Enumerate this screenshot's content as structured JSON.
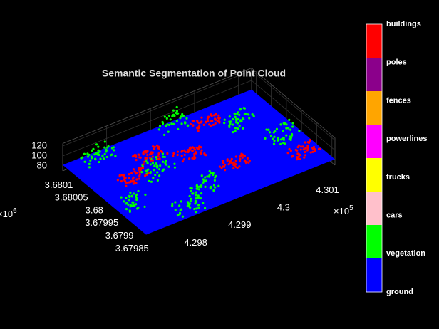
{
  "chart_data": {
    "type": "scatter3",
    "title": "Semantic Segmentation of Point Cloud",
    "xlim": [
      4.297,
      4.3013
    ],
    "xticks": [
      4.298,
      4.299,
      4.3,
      4.301
    ],
    "x_exponent": {
      "base": "×10",
      "power": "5"
    },
    "ylim": [
      3.67984,
      3.680115
    ],
    "yticks": [
      3.67985,
      3.6799,
      3.67995,
      3.68,
      3.68005,
      3.6801
    ],
    "y_exponent": {
      "base": "×10",
      "power": "6"
    },
    "zlim": [
      70,
      125
    ],
    "zticks": [
      80,
      100,
      120
    ],
    "grid": true,
    "colorbar": {
      "labels": [
        "buildings",
        "poles",
        "fences",
        "powerlines",
        "trucks",
        "cars",
        "vegetation",
        "ground"
      ],
      "colors": [
        "#ff0000",
        "#8b008b",
        "#ffa500",
        "#ff00ff",
        "#ffff00",
        "#ffc0cb",
        "#00ff00",
        "#0000ff"
      ]
    }
  }
}
